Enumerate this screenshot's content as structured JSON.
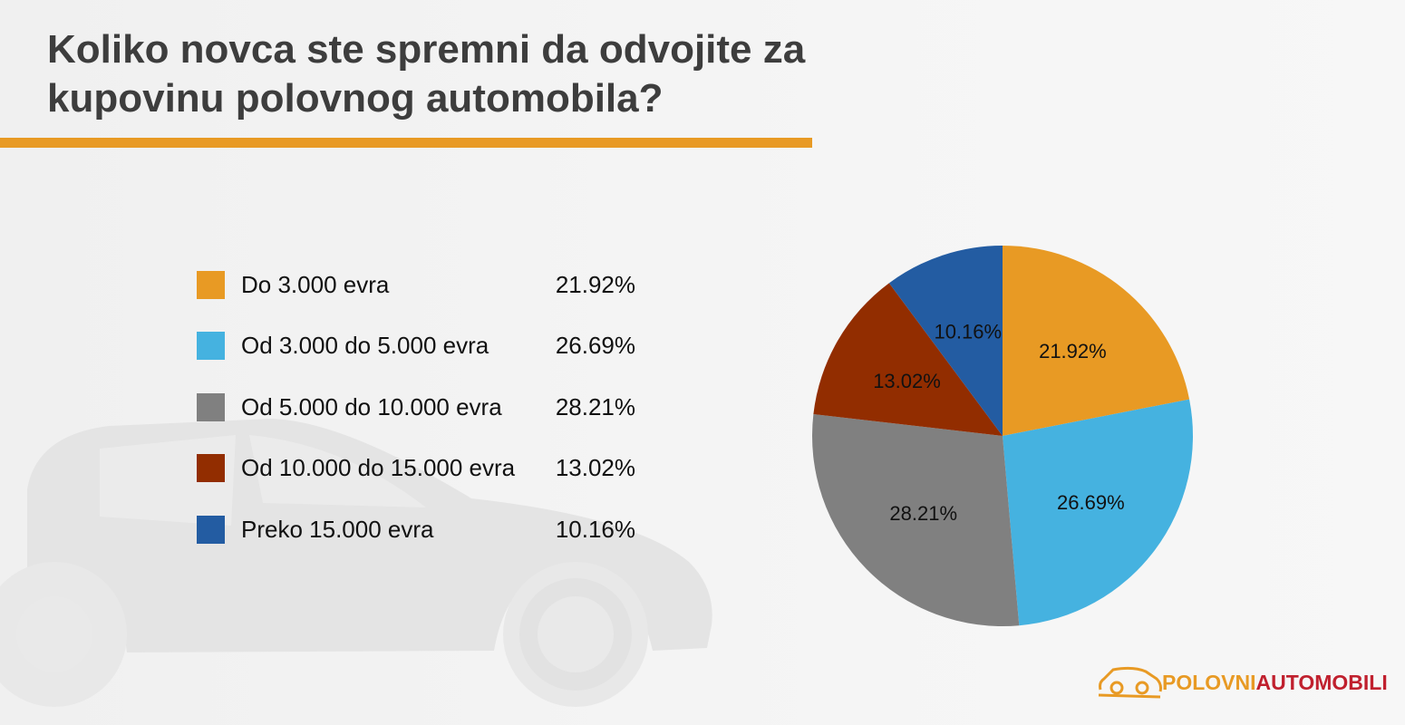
{
  "title": "Koliko novca ste spremni da odvojite za kupovinu polovnog automobila?",
  "chart_data": {
    "type": "pie",
    "title": "Koliko novca ste spremni da odvojite za kupovinu polovnog automobila?",
    "start": "top",
    "direction": "clockwise",
    "slices": [
      {
        "label": "Do 3.000 evra",
        "value": 21.92,
        "display": "21.92%",
        "color": "#e89a24"
      },
      {
        "label": "Od 3.000 do 5.000 evra",
        "value": 26.69,
        "display": "26.69%",
        "color": "#45b2e0"
      },
      {
        "label": "Od 5.000 do 10.000 evra",
        "value": 28.21,
        "display": "28.21%",
        "color": "#808080"
      },
      {
        "label": "Od 10.000 do 15.000 evra",
        "value": 13.02,
        "display": "13.02%",
        "color": "#922d00"
      },
      {
        "label": "Preko 15.000 evra",
        "value": 10.16,
        "display": "10.16%",
        "color": "#235ca2"
      }
    ],
    "legend_placement": "left"
  },
  "logo": {
    "part1": "POLOVNI",
    "part2": "AUTOMOBILI",
    "color1": "#e89a24",
    "color2": "#c0202e"
  },
  "accent_color": "#e89a24"
}
